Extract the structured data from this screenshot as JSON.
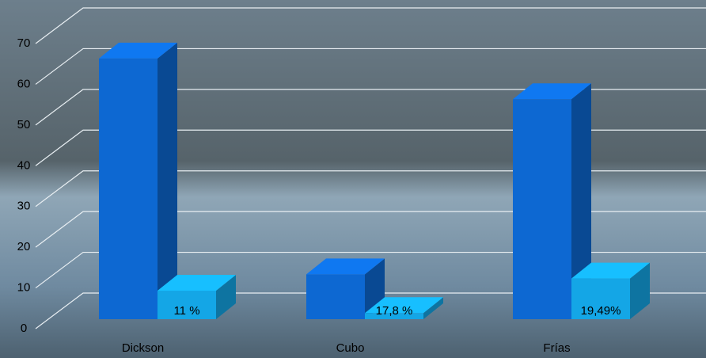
{
  "chart_data": {
    "type": "bar3d",
    "categories": [
      "Dickson",
      "Cubo",
      "Frías"
    ],
    "series": [
      {
        "color": "#0d68d2",
        "values": [
          64,
          11,
          54
        ]
      },
      {
        "color": "#14a6e6",
        "values": [
          7,
          1.5,
          10
        ],
        "annotations": [
          "11 %",
          "17,8 %",
          "19,49%"
        ]
      }
    ],
    "ylim": [
      0,
      70
    ],
    "yticks": [
      0,
      10,
      20,
      30,
      40,
      50,
      60,
      70
    ],
    "grid": true
  }
}
